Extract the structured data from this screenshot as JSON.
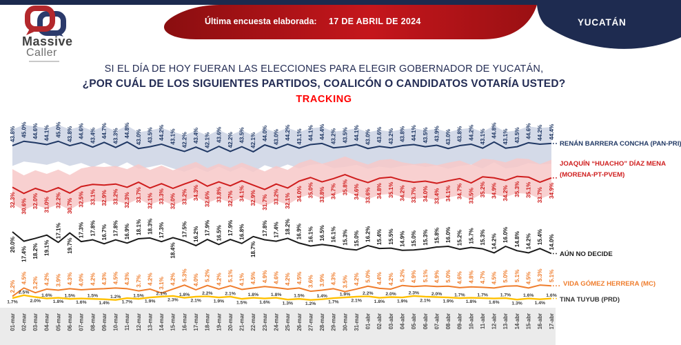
{
  "header": {
    "brand": {
      "name_top": "Massive",
      "name_bottom": "Caller"
    },
    "banner": {
      "label": "Última encuesta elaborada:",
      "date": "17 DE ABRIL DE 2024"
    },
    "region": "YUCATÁN"
  },
  "title": {
    "line1": "SI EL DÍA DE HOY FUERAN LAS ELECCIONES PARA ELEGIR GOBERNADOR DE YUCATÁN,",
    "line2": "¿POR CUÁL DE LOS SIGUIENTES PARTIDOS, COALICÓN  O CANDIDATOS VOTARÍA USTED?",
    "tracking": "TRACKING"
  },
  "colors": {
    "navy": "#232c54",
    "banner_red": "#b31217",
    "tracking_red": "#ff0000",
    "pan_pri_line": "#203864",
    "morena_line": "#cf1d1d",
    "undecided_line": "#1a1a1a",
    "mc_line": "#ef7d2d",
    "prd_line": "#ffc000"
  },
  "chart_data": {
    "type": "line",
    "title": "TRACKING",
    "x": [
      "01-mar",
      "02-mar",
      "03-mar",
      "04-mar",
      "05-mar",
      "06-mar",
      "07-mar",
      "08-mar",
      "09-mar",
      "10-mar",
      "11-mar",
      "12-mar",
      "13-mar",
      "14-mar",
      "15-mar",
      "16-mar",
      "17-mar",
      "18-mar",
      "19-mar",
      "20-mar",
      "21-mar",
      "22-mar",
      "23-mar",
      "24-mar",
      "25-mar",
      "26-mar",
      "27-mar",
      "28-mar",
      "29-mar",
      "30-mar",
      "31-mar",
      "01-abr",
      "02-abr",
      "03-abr",
      "04-abr",
      "05-abr",
      "06-abr",
      "07-abr",
      "08-abr",
      "09-abr",
      "10-abr",
      "11-abr",
      "12-abr",
      "13-abr",
      "14-abr",
      "15-abr",
      "16-abr",
      "17-abr"
    ],
    "ylim": [
      0,
      50
    ],
    "unit": "%",
    "legend_position": "right",
    "series": [
      {
        "id": "pan-pri",
        "name": "RENÁN BARRERA CONCHA (PAN-PRI)",
        "legend_lines": [
          "RENÁN BARRERA CONCHA (PAN-PRI)"
        ],
        "color": "#203864",
        "band_color": "#ccd4e4",
        "values": [
          43.8,
          45.0,
          44.6,
          44.1,
          45.0,
          43.8,
          44.6,
          43.4,
          44.7,
          43.3,
          44.8,
          43.0,
          43.5,
          44.2,
          43.1,
          42.2,
          43.4,
          42.1,
          43.6,
          42.2,
          43.5,
          42.1,
          44.0,
          43.0,
          44.2,
          43.1,
          44.1,
          44.4,
          43.2,
          43.5,
          44.1,
          43.0,
          43.6,
          43.2,
          43.8,
          44.1,
          43.5,
          43.9,
          43.0,
          43.8,
          44.2,
          43.1,
          44.8,
          43.1,
          43.5,
          44.6,
          44.2,
          44.4
        ]
      },
      {
        "id": "morena",
        "name": "JOAQUÍN “HUACHO” DÍAZ MENA (MORENA-PT-PVEM)",
        "legend_lines": [
          "JOAQUÍN “HUACHO” DÍAZ MENA",
          "(MORENA-PT-PVEM)"
        ],
        "color": "#cf1d1d",
        "band_color": "#f7c8c8",
        "values": [
          32.3,
          30.6,
          32.0,
          31.0,
          32.2,
          30.7,
          32.5,
          33.1,
          32.9,
          33.2,
          32.3,
          33.7,
          32.1,
          33.3,
          32.0,
          33.2,
          34.3,
          32.6,
          33.8,
          32.7,
          34.1,
          32.9,
          31.7,
          33.2,
          32.1,
          34.0,
          35.0,
          33.8,
          34.7,
          35.8,
          34.6,
          33.6,
          34.8,
          35.1,
          34.2,
          33.7,
          34.0,
          33.4,
          34.1,
          34.7,
          33.5,
          35.2,
          34.9,
          34.2,
          35.3,
          35.1,
          33.7,
          34.9
        ]
      },
      {
        "id": "aun-no-decide",
        "name": "AÚN NO DECIDE",
        "legend_lines": [
          "AÚN NO DECIDE"
        ],
        "color": "#1a1a1a",
        "values": [
          20.0,
          17.4,
          18.2,
          19.1,
          17.1,
          19.7,
          17.3,
          17.8,
          16.7,
          17.8,
          16.9,
          18.1,
          18.3,
          17.3,
          18.4,
          17.5,
          16.2,
          17.9,
          16.5,
          17.9,
          16.8,
          18.7,
          17.8,
          17.4,
          18.2,
          16.9,
          16.1,
          16.5,
          16.1,
          15.3,
          15.0,
          16.2,
          15.4,
          15.5,
          14.9,
          15.0,
          15.3,
          15.8,
          16.0,
          15.2,
          15.7,
          15.3,
          14.2,
          16.0,
          14.8,
          14.2,
          15.4,
          14.0
        ]
      },
      {
        "id": "mc",
        "name": "VIDA GÓMEZ HERRERA (MC)",
        "legend_lines": [
          "VIDA GÓMEZ HERRERA (MC)"
        ],
        "color": "#ef7d2d",
        "values": [
          2.2,
          4.5,
          3.2,
          4.2,
          3.9,
          4.3,
          4.0,
          4.2,
          4.3,
          4.5,
          4.3,
          3.7,
          4.2,
          3.1,
          4.2,
          5.3,
          4.0,
          5.2,
          4.2,
          5.1,
          4.1,
          4.5,
          4.9,
          4.6,
          4.2,
          4.5,
          3.6,
          3.9,
          4.3,
          3.5,
          4.2,
          5.0,
          4.4,
          4.2,
          5.2,
          4.9,
          5.1,
          4.9,
          5.0,
          4.6,
          4.8,
          4.7,
          4.5,
          5.0,
          5.1,
          4.5,
          5.3,
          5.1
        ]
      },
      {
        "id": "prd",
        "name": "TINA TUYUB (PRD)",
        "legend_lines": [
          "TINA TUYUB (PRD)"
        ],
        "color": "#ffc000",
        "label_color": "#3a3a3a",
        "legend_color": "#333333",
        "inline_labels": true,
        "values": [
          1.7,
          2.5,
          2.0,
          1.6,
          1.8,
          1.5,
          1.6,
          1.5,
          1.4,
          1.2,
          1.7,
          1.5,
          1.9,
          2.1,
          2.3,
          1.8,
          2.1,
          2.2,
          1.9,
          2.1,
          1.5,
          1.8,
          1.6,
          1.8,
          1.3,
          1.5,
          1.2,
          1.4,
          1.7,
          1.9,
          2.1,
          2.2,
          1.8,
          2.0,
          1.9,
          2.3,
          2.1,
          2.0,
          1.9,
          1.7,
          1.8,
          1.7,
          1.6,
          1.7,
          1.3,
          1.6,
          1.4,
          1.6
        ]
      }
    ]
  }
}
